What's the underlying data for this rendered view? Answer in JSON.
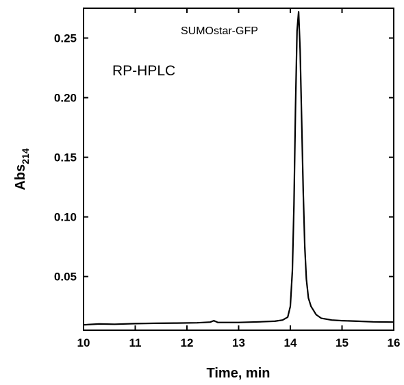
{
  "chart_data": {
    "type": "line",
    "xlabel": "Time, min",
    "ylabel": "Abs",
    "ylabel_subscript": "214",
    "xlim": [
      10,
      16
    ],
    "ylim": [
      0.005,
      0.275
    ],
    "xticks": [
      10,
      11,
      12,
      13,
      14,
      15,
      16
    ],
    "xtick_labels": [
      "10",
      "11",
      "12",
      "13",
      "14",
      "15",
      "16"
    ],
    "yticks": [
      0.05,
      0.1,
      0.15,
      0.2,
      0.25
    ],
    "ytick_labels": [
      "0.05",
      "0.10",
      "0.15",
      "0.20",
      "0.25"
    ],
    "grid": false,
    "annotations": {
      "peak_label": "SUMOstar-GFP",
      "method_label": "RP-HPLC"
    },
    "series": [
      {
        "color": "#000000",
        "x": [
          10.0,
          10.3,
          10.6,
          11.0,
          11.4,
          11.8,
          12.2,
          12.45,
          12.52,
          12.6,
          13.0,
          13.4,
          13.7,
          13.85,
          13.95,
          14.0,
          14.04,
          14.07,
          14.1,
          14.13,
          14.16,
          14.19,
          14.22,
          14.25,
          14.28,
          14.31,
          14.35,
          14.4,
          14.5,
          14.6,
          14.8,
          15.0,
          15.3,
          15.6,
          16.0
        ],
        "y": [
          0.0095,
          0.0102,
          0.01,
          0.0105,
          0.0108,
          0.011,
          0.0112,
          0.0118,
          0.013,
          0.0115,
          0.0115,
          0.012,
          0.0125,
          0.0135,
          0.016,
          0.025,
          0.055,
          0.11,
          0.19,
          0.256,
          0.272,
          0.24,
          0.18,
          0.12,
          0.075,
          0.048,
          0.032,
          0.025,
          0.018,
          0.015,
          0.0135,
          0.013,
          0.0125,
          0.012,
          0.0118
        ]
      }
    ]
  }
}
